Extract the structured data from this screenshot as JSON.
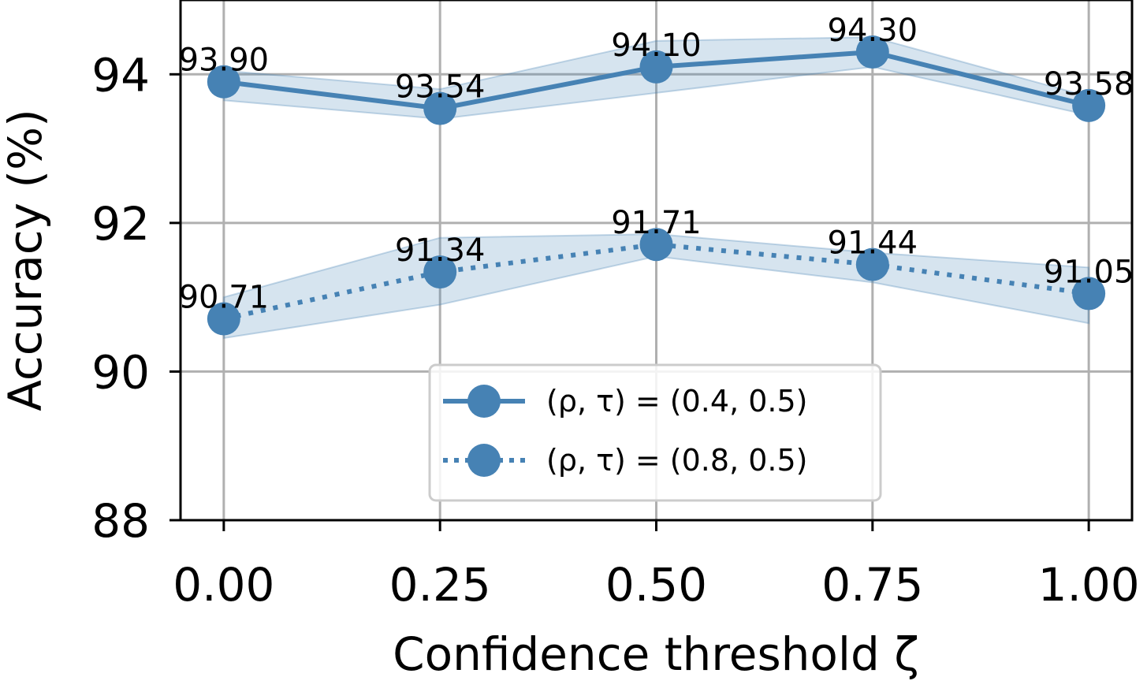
{
  "chart_data": {
    "type": "line",
    "title": "",
    "xlabel": "Confidence threshold ζ",
    "ylabel": "Accuracy (%)",
    "x": [
      0.0,
      0.25,
      0.5,
      0.75,
      1.0
    ],
    "x_tick_labels": [
      "0.00",
      "0.25",
      "0.50",
      "0.75",
      "1.00"
    ],
    "xlim": [
      -0.05,
      1.05
    ],
    "ylim": [
      88,
      95
    ],
    "y_ticks": [
      88,
      90,
      92,
      94
    ],
    "y_tick_labels": [
      "88",
      "90",
      "92",
      "94"
    ],
    "grid": true,
    "legend_position": "lower-center",
    "series": [
      {
        "name": "(ρ, τ) = (0.4, 0.5)",
        "line_style": "solid",
        "color": "#4682b4",
        "values": [
          93.9,
          93.54,
          94.1,
          94.3,
          93.58
        ],
        "labels": [
          "93.90",
          "93.54",
          "94.10",
          "94.30",
          "93.58"
        ],
        "band_lower": [
          93.65,
          93.4,
          93.75,
          94.1,
          93.45
        ],
        "band_upper": [
          94.05,
          93.8,
          94.45,
          94.5,
          93.7
        ]
      },
      {
        "name": "(ρ, τ) = (0.8, 0.5)",
        "line_style": "dotted",
        "color": "#4682b4",
        "values": [
          90.71,
          91.34,
          91.71,
          91.44,
          91.05
        ],
        "labels": [
          "90.71",
          "91.34",
          "91.71",
          "91.44",
          "91.05"
        ],
        "band_lower": [
          90.45,
          90.9,
          91.55,
          91.2,
          90.65
        ],
        "band_upper": [
          91.0,
          91.8,
          91.85,
          91.6,
          91.4
        ]
      }
    ]
  }
}
